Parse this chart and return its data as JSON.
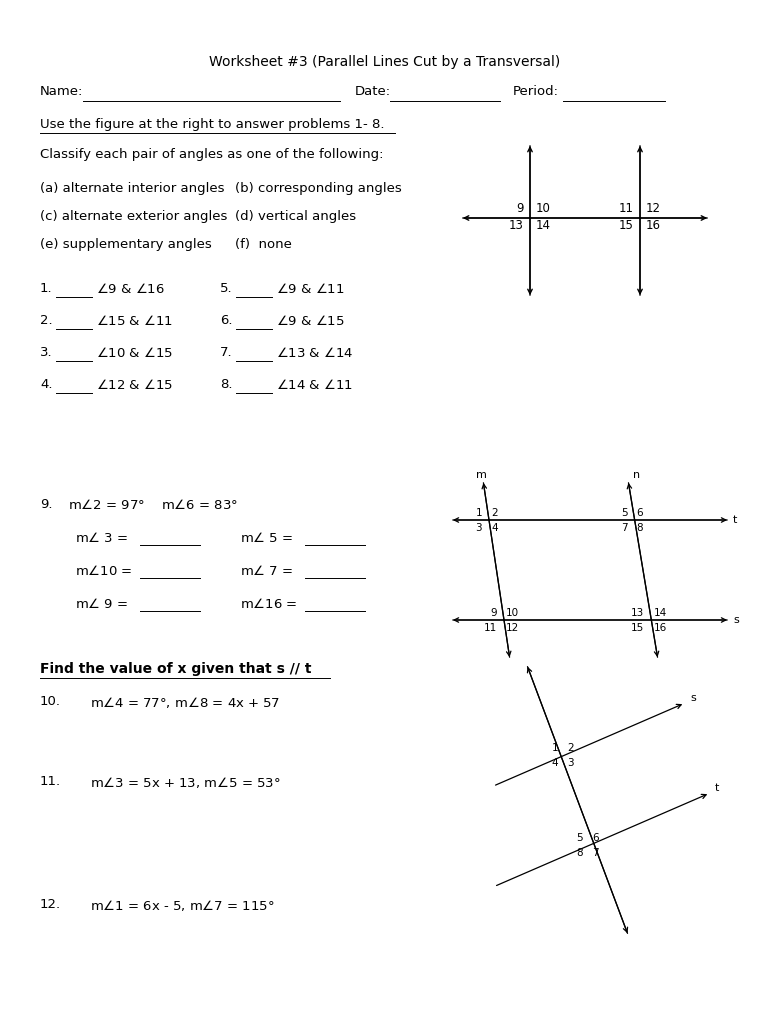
{
  "title": "Worksheet #3 (Parallel Lines Cut by a Transversal)",
  "bg_color": "#ffffff",
  "text_color": "#000000",
  "problems_left": [
    [
      1,
      "$\\angle$9 & $\\angle$16"
    ],
    [
      2,
      "$\\angle$15 & $\\angle$11"
    ],
    [
      3,
      "$\\angle$10 & $\\angle$15"
    ],
    [
      4,
      "$\\angle$12 & $\\angle$15"
    ]
  ],
  "problems_right": [
    [
      5,
      "$\\angle$9 & $\\angle$11"
    ],
    [
      6,
      "$\\angle$9 & $\\angle$15"
    ],
    [
      7,
      "$\\angle$13 & $\\angle$14"
    ],
    [
      8,
      "$\\angle$14 & $\\angle$11"
    ]
  ]
}
